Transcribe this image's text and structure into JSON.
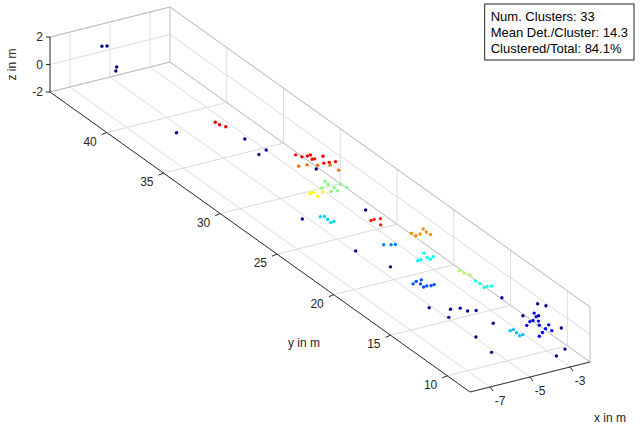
{
  "chart_data": {
    "type": "scatter3d",
    "x_label": "x in m",
    "y_label": "y in m",
    "z_label": "z in m",
    "xlim": [
      -8,
      -2
    ],
    "ylim": [
      8,
      45
    ],
    "zlim": [
      -2,
      2
    ],
    "xticks": [
      -7,
      -5,
      -3
    ],
    "yticks": [
      10,
      15,
      20,
      25,
      30,
      35,
      40
    ],
    "zticks": [
      -2,
      0,
      2
    ],
    "grid": true,
    "annotations": [
      "Num. Clusters: 33",
      "Mean Det./Cluster: 14.3",
      "Clustered/Total: 84.1%"
    ],
    "series": [
      {
        "color": "#00008b",
        "x": [
          -6.0,
          -6.2,
          -5.8,
          -5.9,
          -6.5,
          -4.5,
          -4.0,
          -5.5,
          -3.2,
          -5.6,
          -3.0,
          -5.2,
          -4.6,
          -5.5,
          -5.0,
          -4.8,
          -4.6,
          -5.2,
          -4.4,
          -4.0,
          -3.0,
          -2.8,
          -6.0,
          -5.5,
          -2.4,
          -3.0,
          -2.5,
          -4.0,
          -3.2,
          -2.3
        ],
        "y": [
          43.5,
          43.6,
          43.0,
          42.9,
          36.5,
          34.0,
          33.0,
          31.0,
          30.0,
          27.0,
          26.0,
          23.0,
          21.0,
          16.0,
          15.0,
          14.5,
          14.2,
          14.8,
          13.8,
          13.0,
          14.0,
          12.5,
          11.0,
          10.5,
          9.5,
          9.2,
          11.0,
          9.0,
          10.5,
          10.0
        ],
        "z": [
          1.5,
          1.5,
          0.2,
          0.0,
          -0.5,
          -0.2,
          -0.6,
          0.8,
          -0.5,
          -1.5,
          -1.2,
          -1.6,
          -1.8,
          -1.5,
          -1.2,
          -0.9,
          -1.0,
          -1.6,
          -0.8,
          -1.4,
          -0.5,
          -1.0,
          -0.5,
          -1.5,
          -1.8,
          -1.9,
          0.5,
          1.5,
          1.2,
          -0.6
        ]
      },
      {
        "color": "#ff0000",
        "x": [
          -4.5,
          -4.3,
          -4.0,
          -4.6,
          -3.8,
          -4.2,
          -3.6,
          -4.8,
          -4.4,
          -3.9
        ],
        "y": [
          28.5,
          28.2,
          28.0,
          28.8,
          27.8,
          28.6,
          27.6,
          29.0,
          28.4,
          28.1
        ],
        "z": [
          1.8,
          1.7,
          1.9,
          1.6,
          1.5,
          1.4,
          1.6,
          1.7,
          1.9,
          1.3
        ]
      },
      {
        "color": "#ff6a00",
        "x": [
          -4.1,
          -4.4,
          -3.7,
          -4.7,
          -3.5
        ],
        "y": [
          28.3,
          28.7,
          27.9,
          28.9,
          27.5
        ],
        "z": [
          1.1,
          1.0,
          1.2,
          0.9,
          1.0
        ]
      },
      {
        "color": "#7fff7f",
        "x": [
          -4.2,
          -4.0,
          -3.8,
          -4.4,
          -3.6,
          -4.1,
          -3.9,
          -4.3
        ],
        "y": [
          27.2,
          27.0,
          26.8,
          27.4,
          26.6,
          27.1,
          26.9,
          27.3
        ],
        "z": [
          0.4,
          0.2,
          0.5,
          0.1,
          0.3,
          -0.1,
          0.0,
          0.6
        ]
      },
      {
        "color": "#ffff00",
        "x": [
          -4.6,
          -4.5,
          -4.3,
          -4.7
        ],
        "y": [
          27.8,
          27.6,
          27.5,
          27.9
        ],
        "z": [
          -0.4,
          -0.6,
          -0.3,
          -0.5
        ]
      },
      {
        "color": "#00d4ff",
        "x": [
          -4.9,
          -5.1,
          -4.7,
          -5.0,
          -4.8
        ],
        "y": [
          26.0,
          26.3,
          25.8,
          26.1,
          25.9
        ],
        "z": [
          -1.2,
          -1.1,
          -1.3,
          -1.0,
          -1.4
        ]
      },
      {
        "color": "#ff2000",
        "x": [
          -3.6,
          -3.4,
          -3.5,
          -3.7
        ],
        "y": [
          24.2,
          24.0,
          23.8,
          24.3
        ],
        "z": [
          -0.6,
          -0.5,
          -0.8,
          -0.7
        ]
      },
      {
        "color": "#e00000",
        "x": [
          -5.2,
          -5.0,
          -5.3
        ],
        "y": [
          35.0,
          34.8,
          35.2
        ],
        "z": [
          0.5,
          0.4,
          0.6
        ]
      },
      {
        "color": "#ff8c00",
        "x": [
          -3.8,
          -3.6,
          -3.9,
          -3.5,
          -4.0,
          -3.7
        ],
        "y": [
          19.8,
          19.6,
          20.0,
          19.4,
          20.2,
          19.7
        ],
        "z": [
          1.0,
          1.2,
          0.8,
          1.1,
          0.9,
          1.4
        ]
      },
      {
        "color": "#00ffff",
        "x": [
          -3.9,
          -4.1,
          -3.7,
          -4.0,
          -3.8,
          -4.2
        ],
        "y": [
          19.0,
          19.2,
          18.8,
          19.1,
          18.9,
          19.3
        ],
        "z": [
          -0.2,
          -0.4,
          -0.1,
          0.1,
          -0.3,
          -0.5
        ]
      },
      {
        "color": "#b0ff50",
        "x": [
          -3.2,
          -3.0,
          -3.3
        ],
        "y": [
          17.0,
          16.8,
          17.2
        ],
        "z": [
          -0.4,
          -0.5,
          -0.3
        ]
      },
      {
        "color": "#20ffdf",
        "x": [
          -2.8,
          -2.6,
          -2.9,
          -2.7,
          -2.5
        ],
        "y": [
          16.3,
          16.0,
          16.5,
          16.1,
          15.8
        ],
        "z": [
          -0.9,
          -1.0,
          -0.8,
          -1.1,
          -0.9
        ]
      },
      {
        "color": "#0050ff",
        "x": [
          -4.8,
          -4.6,
          -4.9,
          -4.7,
          -4.5,
          -5.0,
          -4.4,
          -4.7
        ],
        "y": [
          18.0,
          17.8,
          18.2,
          17.9,
          17.6,
          18.3,
          17.5,
          18.1
        ],
        "z": [
          -1.2,
          -1.3,
          -1.1,
          -1.4,
          -1.2,
          -1.3,
          -1.1,
          -1.0
        ]
      },
      {
        "color": "#0000ff",
        "x": [
          -3.4,
          -3.6,
          -3.2,
          -3.5,
          -3.3,
          -3.7,
          -3.1,
          -3.4,
          -3.6,
          -3.0,
          -3.8,
          -3.5
        ],
        "y": [
          10.0,
          10.2,
          9.8,
          10.1,
          9.9,
          10.3,
          9.7,
          10.0,
          10.1,
          9.6,
          10.4,
          9.9
        ],
        "z": [
          0.0,
          0.3,
          -0.2,
          0.6,
          -0.5,
          0.2,
          0.1,
          -0.8,
          0.9,
          -0.3,
          -0.1,
          0.4
        ]
      },
      {
        "color": "#00bfff",
        "x": [
          -4.2,
          -4.4,
          -4.0,
          -4.3,
          -4.1
        ],
        "y": [
          10.6,
          10.8,
          10.4,
          10.7,
          10.5
        ],
        "z": [
          -0.6,
          -0.5,
          -0.7,
          -0.4,
          -0.8
        ]
      },
      {
        "color": "#0080ff",
        "x": [
          -4.0,
          -4.2,
          -3.9
        ],
        "y": [
          22.0,
          22.3,
          21.8
        ],
        "z": [
          -1.0,
          -1.1,
          -0.9
        ]
      }
    ]
  }
}
